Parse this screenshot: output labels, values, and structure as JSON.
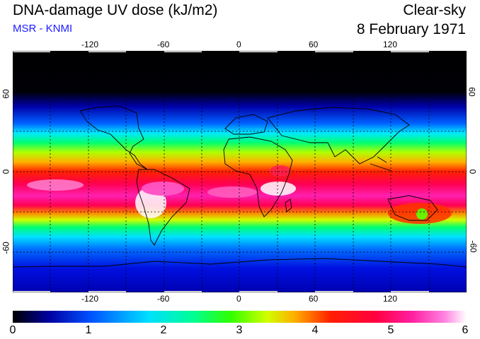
{
  "header": {
    "title": "DNA-damage UV dose (kJ/m2)",
    "source": "MSR - KNMI",
    "sky_condition": "Clear-sky",
    "date": "8 February 1971"
  },
  "map": {
    "lon_ticks": [
      "-120",
      "-60",
      "0",
      "60",
      "120"
    ],
    "lat_ticks_left": [
      "60",
      "0",
      "-60"
    ],
    "lat_ticks_right": [
      "60",
      "0",
      "-60"
    ]
  },
  "colorbar": {
    "min": 0,
    "max": 6,
    "tick_labels": [
      "0",
      "1",
      "2",
      "3",
      "4",
      "5",
      "6"
    ],
    "colors": [
      "#000000",
      "#0000a0",
      "#0050ff",
      "#00e0ff",
      "#00ff90",
      "#30ff00",
      "#d0ff00",
      "#ffb000",
      "#ff2000",
      "#ff0040",
      "#ff20a0",
      "#ff80e0",
      "#ffffff"
    ]
  }
}
